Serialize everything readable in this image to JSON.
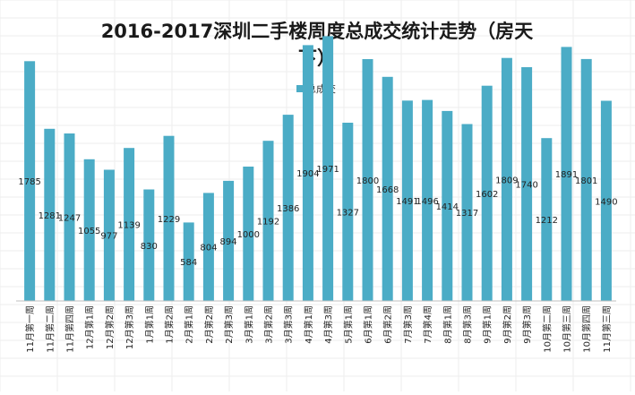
{
  "chart_data": {
    "type": "bar",
    "title_line1": "2016-2017深圳二手楼周度总成交统计走势（房天",
    "title_line2": "下）",
    "legend": {
      "label": "总成交",
      "placement": "top-center"
    },
    "grid": true,
    "ylim": [
      0,
      2600
    ],
    "bar_color": "#4BACC6",
    "categories": [
      "11月第一周",
      "11月第二周",
      "11月第四周",
      "12月第1周",
      "12月第2周",
      "12月第3周",
      "1月第1周",
      "1月第2周",
      "2月第1周",
      "2月第2周",
      "2月第3周",
      "3月第1周",
      "3月第2周",
      "3月第3周",
      "4月第1周",
      "4月第3周",
      "5月第1周",
      "6月第1周",
      "6月第2周",
      "7月第3周",
      "7月第4周",
      "8月第1周",
      "8月第3周",
      "9月第1周",
      "9月第2周",
      "9月第3周",
      "10月第二周",
      "10月第三周",
      "10月第四周",
      "11月第三周"
    ],
    "values": [
      1785,
      1281,
      1247,
      1055,
      977,
      1139,
      830,
      1229,
      584,
      804,
      894,
      1000,
      1192,
      1386,
      1904,
      1971,
      1327,
      1800,
      1668,
      1491,
      1496,
      1414,
      1317,
      1602,
      1809,
      1740,
      1212,
      1891,
      1801,
      1490
    ]
  }
}
